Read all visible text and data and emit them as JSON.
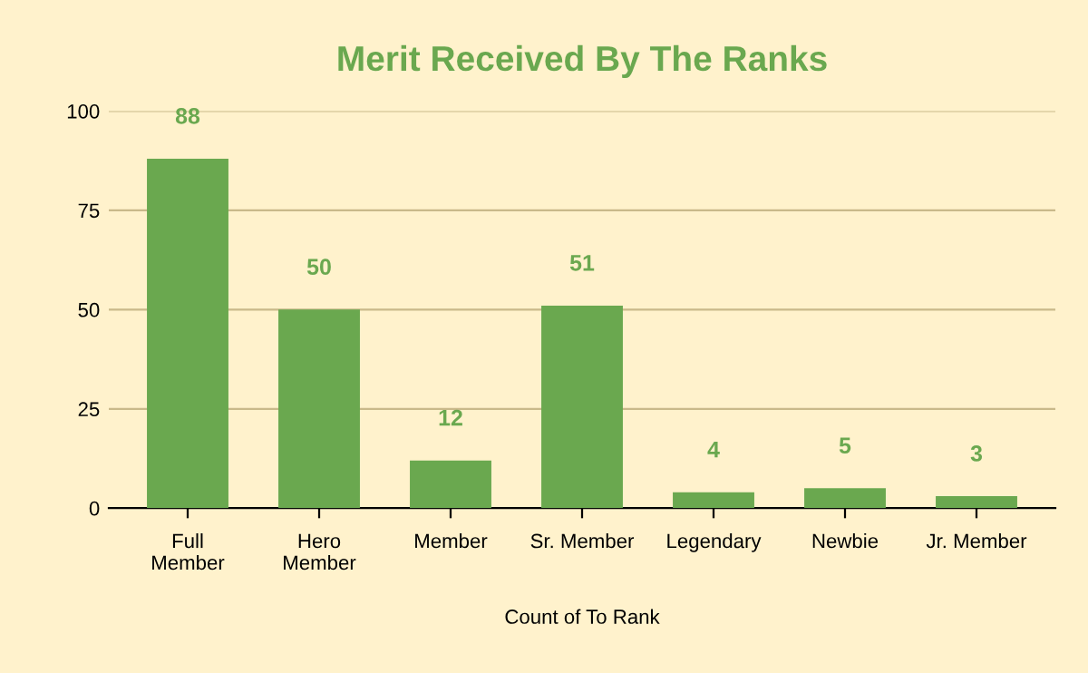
{
  "chart_data": {
    "type": "bar",
    "title": "Merit Received By The Ranks",
    "xlabel": "Count of To Rank",
    "categories": [
      "Full\nMember",
      "Hero\nMember",
      "Member",
      "Sr. Member",
      "Legendary",
      "Newbie",
      "Jr. Member"
    ],
    "values": [
      88,
      50,
      12,
      51,
      4,
      5,
      3
    ],
    "color": "#6aa84f",
    "ylim": [
      0,
      100
    ],
    "yticks": [
      0,
      25,
      50,
      75,
      100
    ],
    "grid": "y",
    "data_labels": true
  }
}
